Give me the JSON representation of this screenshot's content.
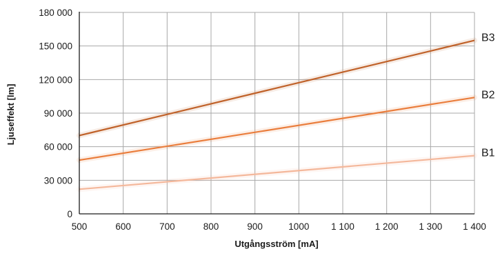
{
  "chart_data": {
    "type": "line",
    "title": "",
    "xlabel": "Utgångsström [mA]",
    "ylabel": "Ljuseffekt [lm]",
    "xlim": [
      500,
      1400
    ],
    "ylim": [
      0,
      180000
    ],
    "x_ticks": [
      500,
      600,
      700,
      800,
      900,
      1000,
      1100,
      1200,
      1300,
      1400
    ],
    "x_tick_labels": [
      "500",
      "600",
      "700",
      "800",
      "900",
      "1000",
      "1 100",
      "1 200",
      "1 300",
      "1 400"
    ],
    "y_ticks": [
      0,
      30000,
      60000,
      90000,
      120000,
      150000,
      180000
    ],
    "y_tick_labels": [
      "0",
      "30 000",
      "60 000",
      "90 000",
      "120 000",
      "150 000",
      "180 000"
    ],
    "grid": true,
    "legend": "line-end labels",
    "x": [
      500,
      1400
    ],
    "series": [
      {
        "name": "B3",
        "values": [
          70000,
          155000
        ],
        "color": "#c0622a"
      },
      {
        "name": "B2",
        "values": [
          48000,
          104000
        ],
        "color": "#ea7d3c"
      },
      {
        "name": "B1",
        "values": [
          22000,
          52000
        ],
        "color": "#f4b79a"
      }
    ]
  }
}
